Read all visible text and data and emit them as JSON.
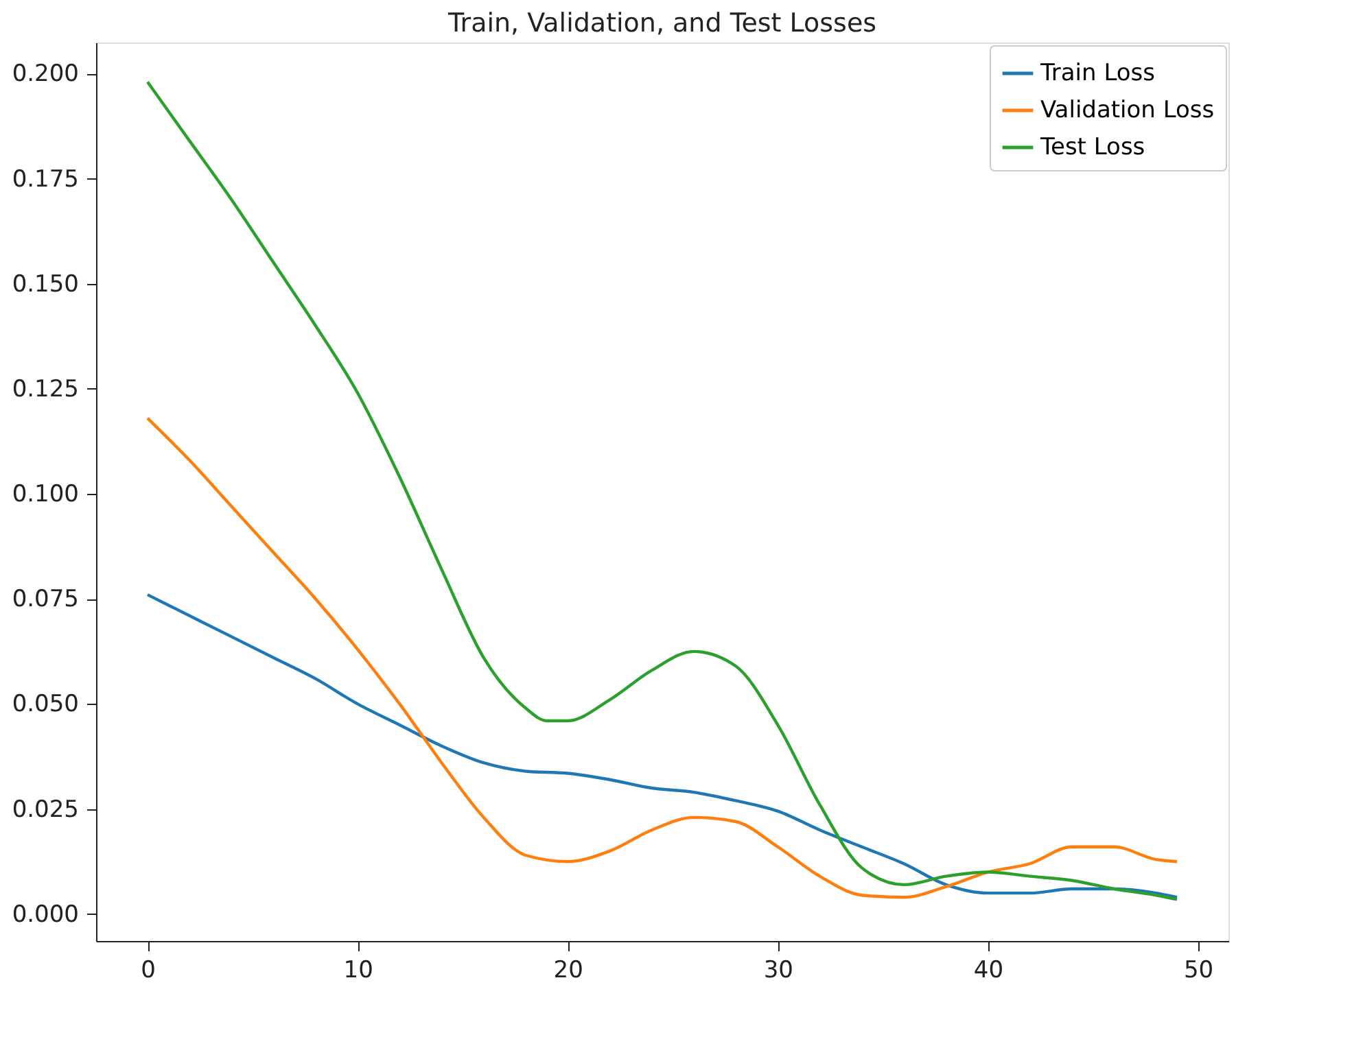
{
  "chart_data": {
    "type": "line",
    "title": "Train, Validation, and Test Losses",
    "xlim": [
      -2.45,
      51.45
    ],
    "ylim": [
      -0.0064,
      0.2074
    ],
    "xticks": [
      0,
      10,
      20,
      30,
      40,
      50
    ],
    "yticks": [
      {
        "value": 0,
        "label": "0.000"
      },
      {
        "value": 0.025,
        "label": "0.025"
      },
      {
        "value": 0.05,
        "label": "0.050"
      },
      {
        "value": 0.075,
        "label": "0.075"
      },
      {
        "value": 0.1,
        "label": "0.100"
      },
      {
        "value": 0.125,
        "label": "0.125"
      },
      {
        "value": 0.15,
        "label": "0.150"
      },
      {
        "value": 0.175,
        "label": "0.175"
      },
      {
        "value": 0.2,
        "label": "0.200"
      }
    ],
    "grid": false,
    "legend": "top right",
    "marker": "none",
    "line_style": "solid",
    "series": [
      {
        "name": "Train Loss",
        "color": "#1f77b4",
        "x": [
          0,
          2,
          4,
          6,
          8,
          10,
          12,
          14,
          16,
          18,
          20,
          22,
          24,
          26,
          28,
          30,
          32,
          34,
          36,
          38,
          40,
          42,
          44,
          46,
          48,
          49
        ],
        "values": [
          0.076,
          0.071,
          0.066,
          0.061,
          0.056,
          0.05,
          0.045,
          0.04,
          0.036,
          0.034,
          0.0335,
          0.032,
          0.03,
          0.029,
          0.027,
          0.0245,
          0.02,
          0.016,
          0.012,
          0.007,
          0.005,
          0.005,
          0.006,
          0.006,
          0.005,
          0.004
        ]
      },
      {
        "name": "Validation Loss",
        "color": "#ff7f0e",
        "x": [
          0,
          2,
          4,
          6,
          8,
          10,
          12,
          14,
          16,
          18,
          20,
          22,
          24,
          26,
          28,
          30,
          32,
          34,
          36,
          38,
          40,
          42,
          44,
          46,
          48,
          49
        ],
        "values": [
          0.118,
          0.108,
          0.097,
          0.086,
          0.075,
          0.063,
          0.05,
          0.036,
          0.023,
          0.014,
          0.0125,
          0.015,
          0.02,
          0.023,
          0.022,
          0.016,
          0.009,
          0.0045,
          0.004,
          0.0065,
          0.01,
          0.012,
          0.016,
          0.016,
          0.013,
          0.0125
        ]
      },
      {
        "name": "Test Loss",
        "color": "#2ca02c",
        "x": [
          0,
          2,
          4,
          6,
          8,
          10,
          12,
          14,
          16,
          18,
          19,
          20,
          22,
          24,
          26,
          28,
          30,
          32,
          34,
          36,
          38,
          40,
          42,
          44,
          46,
          48,
          49
        ],
        "values": [
          0.198,
          0.184,
          0.17,
          0.155,
          0.14,
          0.124,
          0.104,
          0.082,
          0.061,
          0.049,
          0.046,
          0.046,
          0.051,
          0.058,
          0.0625,
          0.059,
          0.045,
          0.026,
          0.011,
          0.007,
          0.009,
          0.01,
          0.009,
          0.008,
          0.006,
          0.0045,
          0.0035
        ]
      }
    ]
  }
}
